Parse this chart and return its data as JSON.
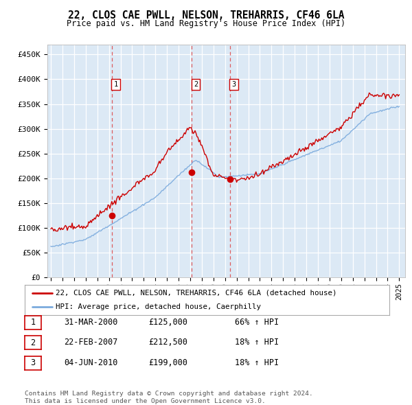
{
  "title": "22, CLOS CAE PWLL, NELSON, TREHARRIS, CF46 6LA",
  "subtitle": "Price paid vs. HM Land Registry's House Price Index (HPI)",
  "plot_bg_color": "#dce9f5",
  "ylim": [
    0,
    470000
  ],
  "yticks": [
    0,
    50000,
    100000,
    150000,
    200000,
    250000,
    300000,
    350000,
    400000,
    450000
  ],
  "ytick_labels": [
    "£0",
    "£50K",
    "£100K",
    "£150K",
    "£200K",
    "£250K",
    "£300K",
    "£350K",
    "£400K",
    "£450K"
  ],
  "xlim_start": 1994.7,
  "xlim_end": 2025.5,
  "sale_dates": [
    2000.25,
    2007.14,
    2010.42
  ],
  "sale_prices": [
    125000,
    212500,
    199000
  ],
  "sale_labels": [
    "1",
    "2",
    "3"
  ],
  "legend_line1": "22, CLOS CAE PWLL, NELSON, TREHARRIS, CF46 6LA (detached house)",
  "legend_line2": "HPI: Average price, detached house, Caerphilly",
  "table_data": [
    [
      "1",
      "31-MAR-2000",
      "£125,000",
      "66% ↑ HPI"
    ],
    [
      "2",
      "22-FEB-2007",
      "£212,500",
      "18% ↑ HPI"
    ],
    [
      "3",
      "04-JUN-2010",
      "£199,000",
      "18% ↑ HPI"
    ]
  ],
  "footnote": "Contains HM Land Registry data © Crown copyright and database right 2024.\nThis data is licensed under the Open Government Licence v3.0.",
  "red_color": "#cc0000",
  "blue_color": "#7aaadd",
  "grid_color": "#c8d8ea"
}
